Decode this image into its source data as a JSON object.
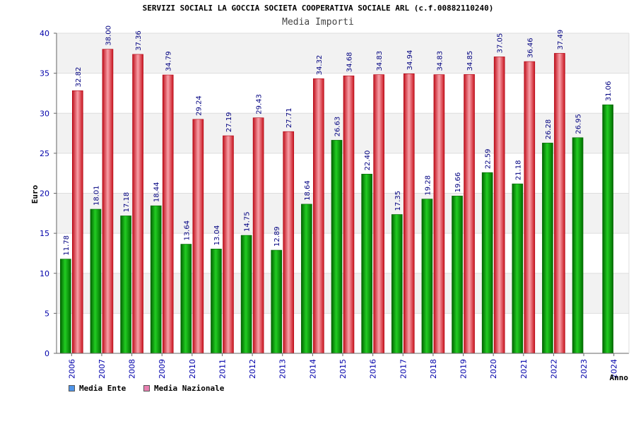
{
  "title": "SERVIZI SOCIALI LA GOCCIA SOCIETA COOPERATIVA SOCIALE ARL (c.f.00882110240)",
  "subtitle": "Media Importi",
  "colors": {
    "ente": "#00b000",
    "nazionale": "#ee2a3a",
    "ente_legend": "#4f94e8",
    "nazionale_legend": "#e87fb0",
    "axis_text": "#0000aa"
  },
  "chart_data": {
    "type": "bar",
    "title": "SERVIZI SOCIALI LA GOCCIA SOCIETA COOPERATIVA SOCIALE ARL (c.f.00882110240)",
    "subtitle": "Media Importi",
    "xlabel": "Anno",
    "ylabel": "Euro",
    "ylim": [
      0,
      40
    ],
    "yticks": [
      0,
      5,
      10,
      15,
      20,
      25,
      30,
      35,
      40
    ],
    "categories": [
      "2006",
      "2007",
      "2008",
      "2009",
      "2010",
      "2011",
      "2012",
      "2013",
      "2014",
      "2015",
      "2016",
      "2017",
      "2018",
      "2019",
      "2020",
      "2021",
      "2022",
      "2023",
      "2024"
    ],
    "series": [
      {
        "name": "Media Ente",
        "values": [
          11.78,
          18.01,
          17.18,
          18.44,
          13.64,
          13.04,
          14.75,
          12.89,
          18.64,
          26.63,
          22.4,
          17.35,
          19.28,
          19.66,
          22.59,
          21.18,
          26.28,
          26.95,
          31.06
        ]
      },
      {
        "name": "Media Nazionale",
        "values": [
          32.82,
          38.0,
          37.36,
          34.79,
          29.24,
          27.19,
          29.43,
          27.71,
          34.32,
          34.68,
          34.83,
          34.94,
          34.83,
          34.85,
          37.05,
          36.46,
          37.49,
          null,
          null
        ]
      }
    ],
    "labels": [
      [
        "11.78",
        "18.01",
        "17.18",
        "18.44",
        "13.64",
        "13.04",
        "14.75",
        "12.89",
        "18.64",
        "26.63",
        "22.40",
        "17.35",
        "19.28",
        "19.66",
        "22.59",
        "21.18",
        "26.28",
        "26.95",
        "31.06"
      ],
      [
        "32.82",
        "38.00",
        "37.36",
        "34.79",
        "29.24",
        "27.19",
        "29.43",
        "27.71",
        "34.32",
        "34.68",
        "34.83",
        "34.94",
        "34.83",
        "34.85",
        "37.05",
        "36.46",
        "37.49",
        null,
        null
      ]
    ],
    "legend": [
      "Media Ente",
      "Media Nazionale"
    ],
    "legend_position": "bottom-left"
  }
}
